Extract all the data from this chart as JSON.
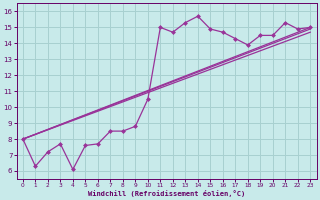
{
  "xlabel": "Windchill (Refroidissement éolien,°C)",
  "ylabel_ticks": [
    6,
    7,
    8,
    9,
    10,
    11,
    12,
    13,
    14,
    15,
    16
  ],
  "xlim": [
    -0.5,
    23.5
  ],
  "ylim": [
    5.5,
    16.5
  ],
  "xticks": [
    0,
    1,
    2,
    3,
    4,
    5,
    6,
    7,
    8,
    9,
    10,
    11,
    12,
    13,
    14,
    15,
    16,
    17,
    18,
    19,
    20,
    21,
    22,
    23
  ],
  "background_color": "#c8eaea",
  "grid_color": "#a8d0d0",
  "line_color": "#993399",
  "main_x": [
    0,
    1,
    2,
    3,
    4,
    5,
    6,
    7,
    8,
    9,
    10,
    11,
    12,
    13,
    14,
    15,
    16,
    17,
    18,
    19,
    20,
    21,
    22,
    23
  ],
  "main_y": [
    8.0,
    6.3,
    7.2,
    7.7,
    6.1,
    7.6,
    7.7,
    8.5,
    8.5,
    8.8,
    10.5,
    15.0,
    14.7,
    15.3,
    15.7,
    14.9,
    14.7,
    14.3,
    13.9,
    14.5,
    14.5,
    15.3,
    14.9,
    15.0
  ],
  "trend1_x": [
    0,
    23
  ],
  "trend1_y": [
    8.0,
    15.0
  ],
  "trend2_x": [
    0,
    23
  ],
  "trend2_y": [
    8.0,
    14.9
  ],
  "trend3_x": [
    0,
    23
  ],
  "trend3_y": [
    8.0,
    14.7
  ]
}
